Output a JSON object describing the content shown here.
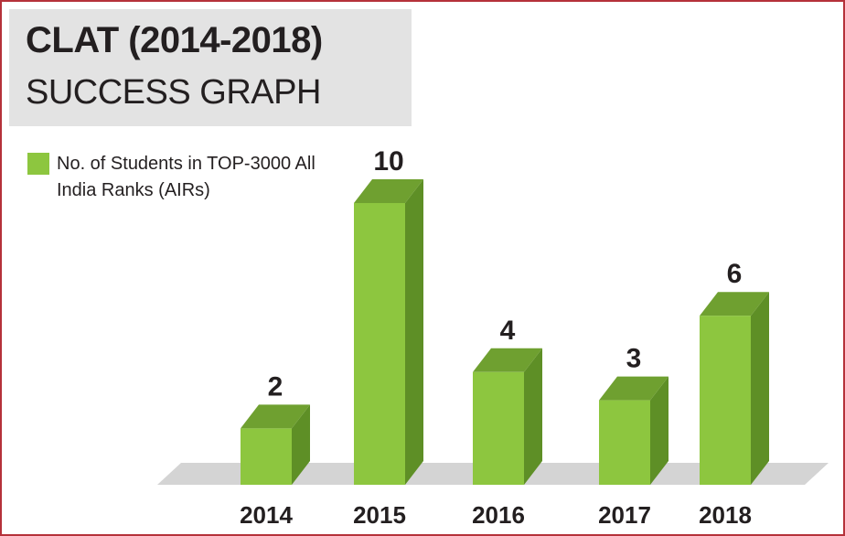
{
  "title": {
    "line1": "CLAT (2014-2018)",
    "line2": "SUCCESS GRAPH"
  },
  "legend": {
    "label": "No. of Students in TOP-3000 All India Ranks (AIRs)",
    "color": "#8dc63f"
  },
  "colors": {
    "bar_front": "#8dc63f",
    "bar_top": "#6fa030",
    "bar_side": "#5e8f26",
    "floor": "#d4d4d4",
    "border": "#b5313a"
  },
  "chart_data": {
    "type": "bar",
    "categories": [
      "2014",
      "2015",
      "2016",
      "2017",
      "2018"
    ],
    "values": [
      2,
      10,
      4,
      3,
      6
    ],
    "title": "CLAT (2014-2018) SUCCESS GRAPH",
    "xlabel": "",
    "ylabel": "",
    "ylim": [
      0,
      10
    ],
    "grid": false,
    "legend_position": "top-left",
    "series": [
      {
        "name": "No. of Students in TOP-3000 All India Ranks (AIRs)",
        "values": [
          2,
          10,
          4,
          3,
          6
        ]
      }
    ]
  }
}
